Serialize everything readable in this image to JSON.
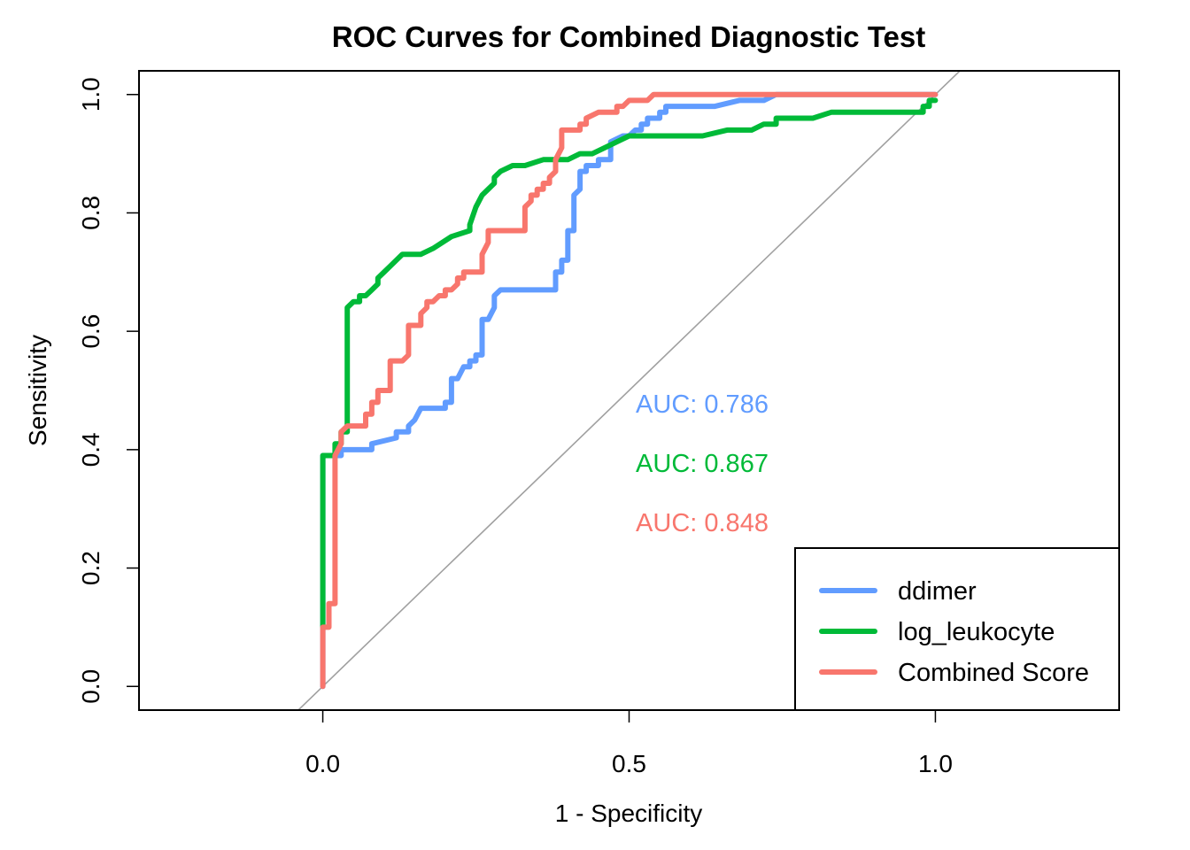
{
  "chart_data": {
    "type": "line",
    "title": "ROC Curves for Combined Diagnostic Test",
    "xlabel": "1 - Specificity",
    "ylabel": "Sensitivity",
    "xlim": [
      -0.3,
      1.3
    ],
    "ylim": [
      -0.04,
      1.04
    ],
    "xticks": [
      {
        "value": 0.0,
        "label": "0.0"
      },
      {
        "value": 0.5,
        "label": "0.5"
      },
      {
        "value": 1.0,
        "label": "1.0"
      }
    ],
    "yticks": [
      {
        "value": 0.0,
        "label": "0.0"
      },
      {
        "value": 0.2,
        "label": "0.2"
      },
      {
        "value": 0.4,
        "label": "0.4"
      },
      {
        "value": 0.6,
        "label": "0.6"
      },
      {
        "value": 0.8,
        "label": "0.8"
      },
      {
        "value": 1.0,
        "label": "1.0"
      }
    ],
    "grid": false,
    "legend_position": "bottom-right",
    "reference_line": {
      "color": "#a0a0a0",
      "from": [
        0,
        0
      ],
      "to": [
        1,
        1
      ]
    },
    "series": [
      {
        "name": "ddimer",
        "color": "#619cff",
        "auc_label": "AUC: 0.786",
        "points": [
          [
            0,
            0
          ],
          [
            0,
            0.1
          ],
          [
            0,
            0.39
          ],
          [
            0.03,
            0.39
          ],
          [
            0.03,
            0.4
          ],
          [
            0.05,
            0.4
          ],
          [
            0.08,
            0.4
          ],
          [
            0.08,
            0.41
          ],
          [
            0.12,
            0.42
          ],
          [
            0.12,
            0.43
          ],
          [
            0.14,
            0.43
          ],
          [
            0.14,
            0.44
          ],
          [
            0.15,
            0.45
          ],
          [
            0.16,
            0.47
          ],
          [
            0.18,
            0.47
          ],
          [
            0.2,
            0.47
          ],
          [
            0.2,
            0.48
          ],
          [
            0.21,
            0.48
          ],
          [
            0.21,
            0.52
          ],
          [
            0.22,
            0.52
          ],
          [
            0.23,
            0.54
          ],
          [
            0.24,
            0.54
          ],
          [
            0.24,
            0.55
          ],
          [
            0.25,
            0.55
          ],
          [
            0.25,
            0.56
          ],
          [
            0.26,
            0.56
          ],
          [
            0.26,
            0.62
          ],
          [
            0.27,
            0.62
          ],
          [
            0.28,
            0.64
          ],
          [
            0.28,
            0.66
          ],
          [
            0.29,
            0.67
          ],
          [
            0.33,
            0.67
          ],
          [
            0.38,
            0.67
          ],
          [
            0.38,
            0.7
          ],
          [
            0.39,
            0.7
          ],
          [
            0.39,
            0.72
          ],
          [
            0.4,
            0.72
          ],
          [
            0.4,
            0.77
          ],
          [
            0.41,
            0.77
          ],
          [
            0.41,
            0.83
          ],
          [
            0.42,
            0.84
          ],
          [
            0.42,
            0.87
          ],
          [
            0.43,
            0.87
          ],
          [
            0.43,
            0.88
          ],
          [
            0.45,
            0.88
          ],
          [
            0.45,
            0.89
          ],
          [
            0.47,
            0.89
          ],
          [
            0.47,
            0.92
          ],
          [
            0.49,
            0.93
          ],
          [
            0.5,
            0.93
          ],
          [
            0.51,
            0.94
          ],
          [
            0.52,
            0.94
          ],
          [
            0.52,
            0.95
          ],
          [
            0.53,
            0.95
          ],
          [
            0.53,
            0.96
          ],
          [
            0.55,
            0.96
          ],
          [
            0.55,
            0.97
          ],
          [
            0.56,
            0.97
          ],
          [
            0.56,
            0.98
          ],
          [
            0.6,
            0.98
          ],
          [
            0.64,
            0.98
          ],
          [
            0.68,
            0.99
          ],
          [
            0.72,
            0.99
          ],
          [
            0.74,
            1.0
          ],
          [
            0.8,
            1.0
          ],
          [
            0.9,
            1.0
          ],
          [
            1.0,
            1.0
          ]
        ]
      },
      {
        "name": "log_leukocyte",
        "color": "#00ba38",
        "auc_label": "AUC: 0.867",
        "points": [
          [
            0,
            0.1
          ],
          [
            0,
            0.39
          ],
          [
            0.01,
            0.39
          ],
          [
            0.02,
            0.39
          ],
          [
            0.02,
            0.41
          ],
          [
            0.03,
            0.41
          ],
          [
            0.03,
            0.43
          ],
          [
            0.04,
            0.43
          ],
          [
            0.04,
            0.64
          ],
          [
            0.05,
            0.65
          ],
          [
            0.06,
            0.65
          ],
          [
            0.06,
            0.66
          ],
          [
            0.07,
            0.66
          ],
          [
            0.08,
            0.67
          ],
          [
            0.09,
            0.68
          ],
          [
            0.09,
            0.69
          ],
          [
            0.1,
            0.7
          ],
          [
            0.11,
            0.71
          ],
          [
            0.12,
            0.72
          ],
          [
            0.13,
            0.73
          ],
          [
            0.16,
            0.73
          ],
          [
            0.18,
            0.74
          ],
          [
            0.21,
            0.76
          ],
          [
            0.24,
            0.77
          ],
          [
            0.24,
            0.78
          ],
          [
            0.25,
            0.81
          ],
          [
            0.26,
            0.83
          ],
          [
            0.27,
            0.84
          ],
          [
            0.28,
            0.85
          ],
          [
            0.28,
            0.86
          ],
          [
            0.29,
            0.87
          ],
          [
            0.31,
            0.88
          ],
          [
            0.33,
            0.88
          ],
          [
            0.36,
            0.89
          ],
          [
            0.37,
            0.89
          ],
          [
            0.4,
            0.89
          ],
          [
            0.42,
            0.9
          ],
          [
            0.43,
            0.9
          ],
          [
            0.44,
            0.9
          ],
          [
            0.46,
            0.91
          ],
          [
            0.48,
            0.92
          ],
          [
            0.5,
            0.93
          ],
          [
            0.55,
            0.93
          ],
          [
            0.6,
            0.93
          ],
          [
            0.62,
            0.93
          ],
          [
            0.66,
            0.94
          ],
          [
            0.69,
            0.94
          ],
          [
            0.7,
            0.94
          ],
          [
            0.72,
            0.95
          ],
          [
            0.74,
            0.95
          ],
          [
            0.74,
            0.96
          ],
          [
            0.77,
            0.96
          ],
          [
            0.8,
            0.96
          ],
          [
            0.83,
            0.97
          ],
          [
            0.9,
            0.97
          ],
          [
            0.98,
            0.97
          ],
          [
            0.98,
            0.98
          ],
          [
            0.99,
            0.98
          ],
          [
            0.99,
            0.99
          ],
          [
            1.0,
            0.99
          ]
        ]
      },
      {
        "name": "Combined Score",
        "color": "#f8766d",
        "auc_label": "AUC: 0.848",
        "points": [
          [
            0,
            0
          ],
          [
            0,
            0.1
          ],
          [
            0.01,
            0.1
          ],
          [
            0.01,
            0.14
          ],
          [
            0.02,
            0.14
          ],
          [
            0.02,
            0.15
          ],
          [
            0.02,
            0.39
          ],
          [
            0.03,
            0.41
          ],
          [
            0.03,
            0.43
          ],
          [
            0.04,
            0.44
          ],
          [
            0.07,
            0.44
          ],
          [
            0.07,
            0.46
          ],
          [
            0.08,
            0.46
          ],
          [
            0.08,
            0.48
          ],
          [
            0.09,
            0.48
          ],
          [
            0.09,
            0.5
          ],
          [
            0.1,
            0.5
          ],
          [
            0.11,
            0.5
          ],
          [
            0.11,
            0.52
          ],
          [
            0.11,
            0.55
          ],
          [
            0.12,
            0.55
          ],
          [
            0.13,
            0.55
          ],
          [
            0.14,
            0.56
          ],
          [
            0.14,
            0.58
          ],
          [
            0.14,
            0.61
          ],
          [
            0.15,
            0.61
          ],
          [
            0.16,
            0.61
          ],
          [
            0.16,
            0.63
          ],
          [
            0.17,
            0.64
          ],
          [
            0.17,
            0.65
          ],
          [
            0.18,
            0.65
          ],
          [
            0.19,
            0.66
          ],
          [
            0.2,
            0.66
          ],
          [
            0.2,
            0.67
          ],
          [
            0.21,
            0.67
          ],
          [
            0.22,
            0.68
          ],
          [
            0.22,
            0.69
          ],
          [
            0.23,
            0.69
          ],
          [
            0.23,
            0.7
          ],
          [
            0.24,
            0.7
          ],
          [
            0.26,
            0.7
          ],
          [
            0.26,
            0.73
          ],
          [
            0.27,
            0.75
          ],
          [
            0.27,
            0.77
          ],
          [
            0.28,
            0.77
          ],
          [
            0.31,
            0.77
          ],
          [
            0.33,
            0.77
          ],
          [
            0.33,
            0.81
          ],
          [
            0.34,
            0.82
          ],
          [
            0.34,
            0.83
          ],
          [
            0.35,
            0.83
          ],
          [
            0.35,
            0.84
          ],
          [
            0.36,
            0.84
          ],
          [
            0.36,
            0.85
          ],
          [
            0.37,
            0.85
          ],
          [
            0.37,
            0.86
          ],
          [
            0.38,
            0.87
          ],
          [
            0.38,
            0.89
          ],
          [
            0.39,
            0.91
          ],
          [
            0.39,
            0.93
          ],
          [
            0.39,
            0.94
          ],
          [
            0.42,
            0.94
          ],
          [
            0.42,
            0.95
          ],
          [
            0.43,
            0.95
          ],
          [
            0.43,
            0.96
          ],
          [
            0.45,
            0.97
          ],
          [
            0.48,
            0.97
          ],
          [
            0.48,
            0.98
          ],
          [
            0.49,
            0.98
          ],
          [
            0.5,
            0.99
          ],
          [
            0.53,
            0.99
          ],
          [
            0.54,
            1.0
          ],
          [
            0.6,
            1.0
          ],
          [
            0.7,
            1.0
          ],
          [
            0.8,
            1.0
          ],
          [
            0.9,
            1.0
          ],
          [
            1.0,
            1.0
          ]
        ]
      }
    ]
  }
}
